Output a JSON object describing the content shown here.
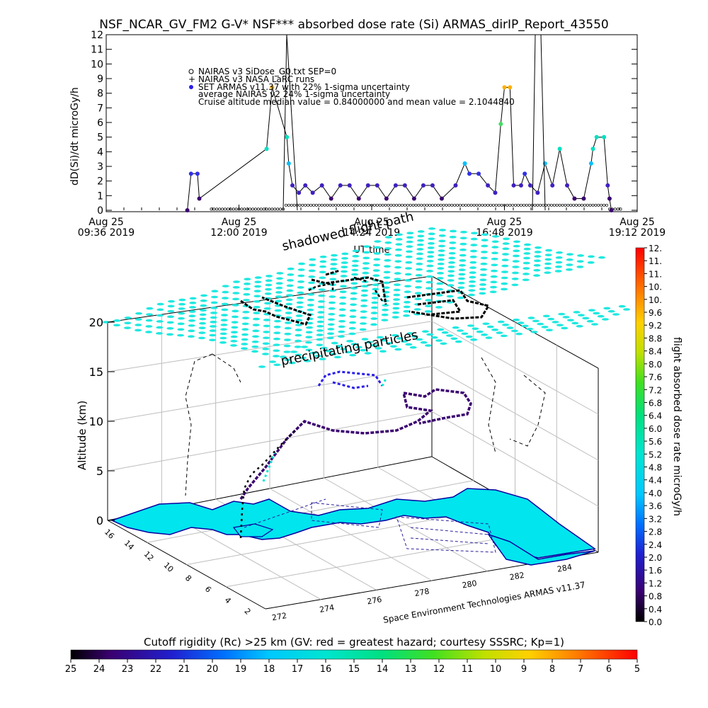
{
  "title": "NSF_NCAR_GV_FM2 G-V* NSF*** absorbed dose rate (Si) ARMAS_dirIP_Report_43550",
  "chart_data": [
    {
      "type": "scatter",
      "ylabel": "dD(Si)/dt microGy/h",
      "xlabel": "UT time",
      "ylim": [
        0,
        12
      ],
      "yticks": [
        "0",
        "1",
        "2",
        "3",
        "4",
        "5",
        "6",
        "7",
        "8",
        "9",
        "10",
        "11",
        "12"
      ],
      "xticks": [
        {
          "line1": "Aug 25",
          "line2": "09:36 2019"
        },
        {
          "line1": "Aug 25",
          "line2": "12:00 2019"
        },
        {
          "line1": "Aug 25",
          "line2": "14:24 2019"
        },
        {
          "line1": "Aug 25",
          "line2": "16:48 2019"
        },
        {
          "line1": "Aug 25",
          "line2": "19:12 2019"
        }
      ],
      "legend": [
        "NAIRAS v3 SiDose_G0.txt SEP=0",
        "NAIRAS v3 NASA LaRC runs",
        "SET ARMAS v11.37 with 22% 1-sigma uncertainty",
        "average NAIRAS v2 24% 1-sigma uncertainty",
        "Cruise altitude median value = 0.84000000 and mean value = 2.1044840"
      ],
      "legend_placement": "top-left",
      "grid": false,
      "series_armas": [
        {
          "t": "11:04",
          "v": 0.0
        },
        {
          "t": "11:08",
          "v": 2.5
        },
        {
          "t": "11:15",
          "v": 2.5
        },
        {
          "t": "11:17",
          "v": 0.8
        },
        {
          "t": "12:30",
          "v": 4.2
        },
        {
          "t": "12:36",
          "v": 8.4
        },
        {
          "t": "12:52",
          "v": 5.0
        },
        {
          "t": "12:54",
          "v": 3.2
        },
        {
          "t": "12:58",
          "v": 1.7
        },
        {
          "t": "13:05",
          "v": 1.2
        },
        {
          "t": "13:12",
          "v": 1.7
        },
        {
          "t": "13:20",
          "v": 1.2
        },
        {
          "t": "13:30",
          "v": 1.7
        },
        {
          "t": "13:40",
          "v": 0.8
        },
        {
          "t": "13:50",
          "v": 1.7
        },
        {
          "t": "14:00",
          "v": 1.7
        },
        {
          "t": "14:10",
          "v": 0.8
        },
        {
          "t": "14:20",
          "v": 1.7
        },
        {
          "t": "14:30",
          "v": 1.7
        },
        {
          "t": "14:40",
          "v": 0.8
        },
        {
          "t": "14:50",
          "v": 1.7
        },
        {
          "t": "15:00",
          "v": 1.7
        },
        {
          "t": "15:10",
          "v": 0.8
        },
        {
          "t": "15:20",
          "v": 1.7
        },
        {
          "t": "15:30",
          "v": 1.7
        },
        {
          "t": "15:40",
          "v": 0.8
        },
        {
          "t": "15:55",
          "v": 1.7
        },
        {
          "t": "16:05",
          "v": 3.2
        },
        {
          "t": "16:10",
          "v": 2.5
        },
        {
          "t": "16:20",
          "v": 2.5
        },
        {
          "t": "16:30",
          "v": 1.7
        },
        {
          "t": "16:38",
          "v": 1.2
        },
        {
          "t": "16:44",
          "v": 5.9
        },
        {
          "t": "16:48",
          "v": 8.4
        },
        {
          "t": "16:54",
          "v": 8.4
        },
        {
          "t": "16:58",
          "v": 1.7
        },
        {
          "t": "17:06",
          "v": 1.7
        },
        {
          "t": "17:10",
          "v": 2.5
        },
        {
          "t": "17:16",
          "v": 1.7
        },
        {
          "t": "17:24",
          "v": 1.2
        },
        {
          "t": "17:32",
          "v": 3.2
        },
        {
          "t": "17:40",
          "v": 1.7
        },
        {
          "t": "17:48",
          "v": 4.2
        },
        {
          "t": "17:56",
          "v": 1.7
        },
        {
          "t": "18:04",
          "v": 0.8
        },
        {
          "t": "18:14",
          "v": 0.8
        },
        {
          "t": "18:22",
          "v": 3.2
        },
        {
          "t": "18:24",
          "v": 4.2
        },
        {
          "t": "18:28",
          "v": 5.0
        },
        {
          "t": "18:36",
          "v": 5.0
        },
        {
          "t": "18:40",
          "v": 1.7
        },
        {
          "t": "18:42",
          "v": 0.8
        },
        {
          "t": "18:44",
          "v": 0.0
        }
      ]
    },
    {
      "type": "scatter",
      "zlabel": "Altitude (km)",
      "zticks": [
        "0",
        "5",
        "10",
        "15",
        "20"
      ],
      "yticks": [
        "16",
        "14",
        "12",
        "10",
        "8",
        "6",
        "4",
        "2"
      ],
      "xticks": [
        "272",
        "274",
        "276",
        "278",
        "280",
        "282",
        "284"
      ],
      "annotations": [
        "shadowed flight path",
        "precipitating particles",
        "Space Environment Technologies ARMAS v11.37"
      ],
      "colorbar_label": "flight absorbed dose rate microGy/h",
      "colorbar_ticks": [
        "0.0",
        "0.4",
        "0.8",
        "1.2",
        "1.6",
        "2.0",
        "2.4",
        "2.8",
        "3.2",
        "3.6",
        "4.0",
        "4.4",
        "4.8",
        "5.2",
        "5.6",
        "6.0",
        "6.4",
        "6.8",
        "7.2",
        "7.6",
        "8.0",
        "8.4",
        "8.8",
        "9.2",
        "9.6",
        "10.",
        "10.",
        "11.",
        "11.",
        "12."
      ]
    },
    {
      "type": "heatmap",
      "label": "Cutoff rigidity (Rc) >25 km (GV: red = greatest hazard; courtesy SSSRC; Kp=1)",
      "ticks": [
        "25",
        "24",
        "23",
        "22",
        "21",
        "20",
        "19",
        "18",
        "17",
        "16",
        "15",
        "14",
        "13",
        "12",
        "11",
        "10",
        "9",
        "8",
        "7",
        "6",
        "5"
      ]
    }
  ],
  "colors": {
    "land": "#00e5ee",
    "coast": "#0000a0",
    "cyan_marker": "#1ee8e0",
    "track_dark": "#3a0070",
    "armas_blue": "#2a1ee8"
  }
}
